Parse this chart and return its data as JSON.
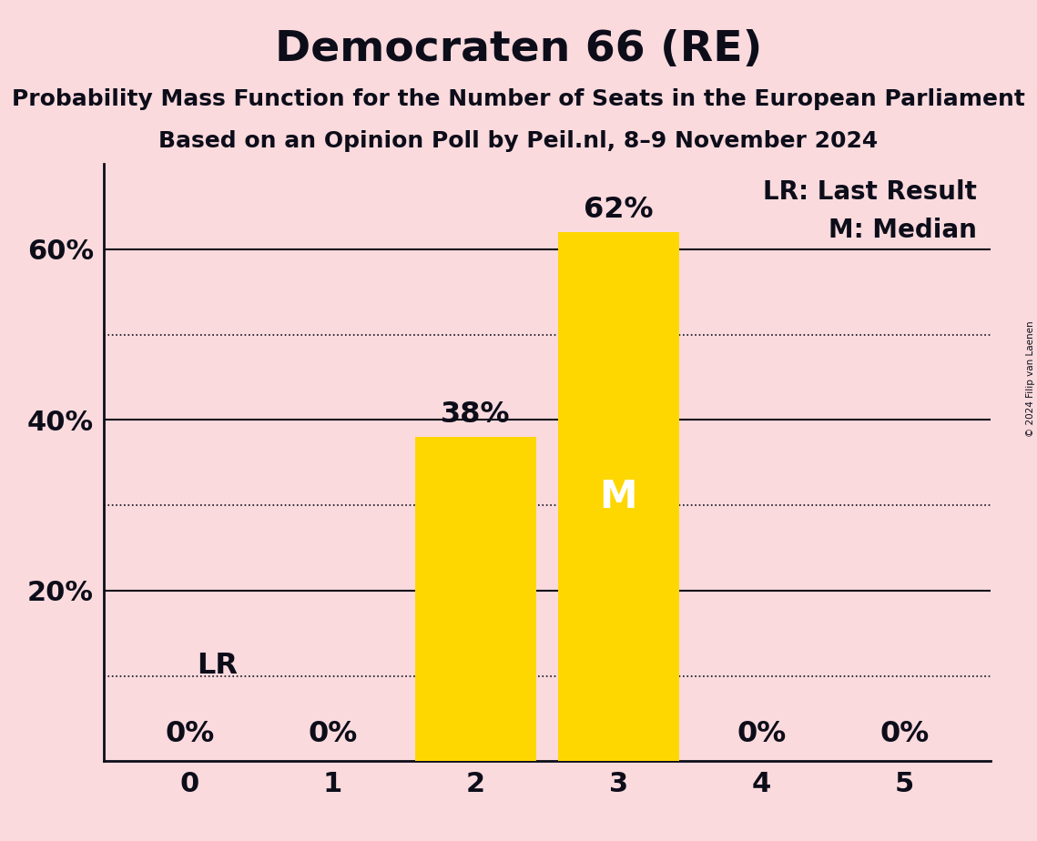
{
  "title": "Democraten 66 (RE)",
  "subtitle1": "Probability Mass Function for the Number of Seats in the European Parliament",
  "subtitle2": "Based on an Opinion Poll by Peil.nl, 8–9 November 2024",
  "copyright": "© 2024 Filip van Laenen",
  "categories": [
    0,
    1,
    2,
    3,
    4,
    5
  ],
  "values": [
    0,
    0,
    38,
    62,
    0,
    0
  ],
  "bar_color": "#FFD700",
  "background_color": "#FADADD",
  "text_color": "#0d0d1a",
  "median_bar": 3,
  "last_result_bar": 0,
  "ylim": [
    0,
    70
  ],
  "yticks": [
    0,
    20,
    40,
    60
  ],
  "ytick_labels": [
    "",
    "20%",
    "40%",
    "60%"
  ],
  "legend_lr": "LR: Last Result",
  "legend_m": "M: Median",
  "median_label": "M",
  "lr_label": "LR",
  "title_fontsize": 34,
  "subtitle_fontsize": 18,
  "axis_fontsize": 22,
  "bar_label_fontsize": 23,
  "legend_fontsize": 20,
  "dotted_grid_levels": [
    10,
    30,
    50
  ],
  "solid_grid_levels": [
    20,
    40,
    60
  ],
  "bar_width": 0.85
}
